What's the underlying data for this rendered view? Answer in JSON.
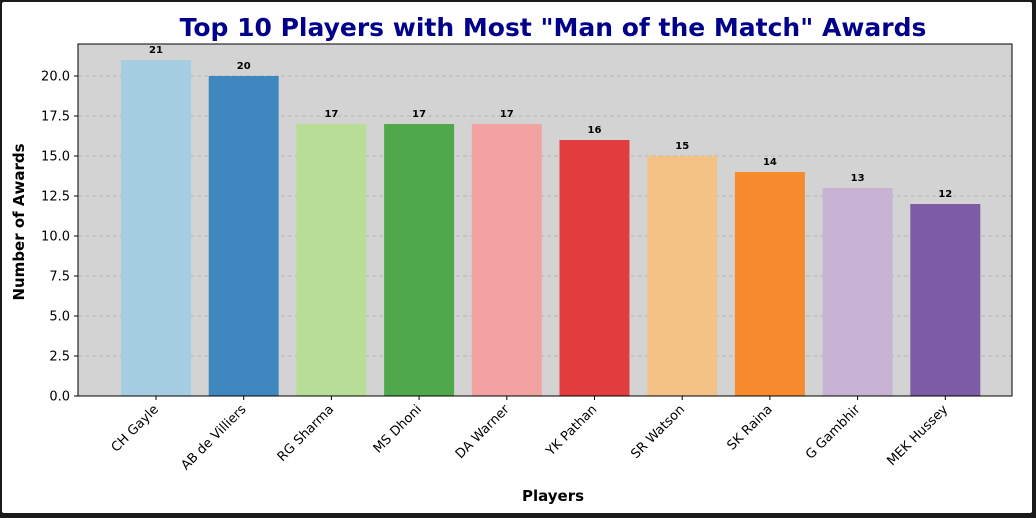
{
  "chart_data": {
    "type": "bar",
    "title": "Top 10 Players with Most \"Man of the Match\" Awards",
    "xlabel": "Players",
    "ylabel": "Number of Awards",
    "categories": [
      "CH Gayle",
      "AB de Villiers",
      "RG Sharma",
      "MS Dhoni",
      "DA Warner",
      "YK Pathan",
      "SR Watson",
      "SK Raina",
      "G Gambhir",
      "MEK Hussey"
    ],
    "values": [
      21,
      20,
      17,
      17,
      17,
      16,
      15,
      14,
      13,
      12
    ],
    "data_labels": [
      "21",
      "20",
      "17",
      "17",
      "17",
      "16",
      "15",
      "14",
      "13",
      "12"
    ],
    "colors": [
      "#a6cee3",
      "#3f88bf",
      "#b7dd96",
      "#4fa84a",
      "#f2a2a0",
      "#e13d3f",
      "#f5c285",
      "#f58b2c",
      "#c8b3d5",
      "#7d5ba5"
    ],
    "ylim": [
      0,
      22
    ],
    "yticks": [
      0,
      2.5,
      5,
      7.5,
      10,
      12.5,
      15,
      17.5,
      20
    ],
    "ytick_labels": [
      "0.0",
      "2.5",
      "5.0",
      "7.5",
      "10.0",
      "12.5",
      "15.0",
      "17.5",
      "20.0"
    ],
    "grid": "y-dashed",
    "plot_background": "#d3d3d3",
    "legend": "none"
  }
}
